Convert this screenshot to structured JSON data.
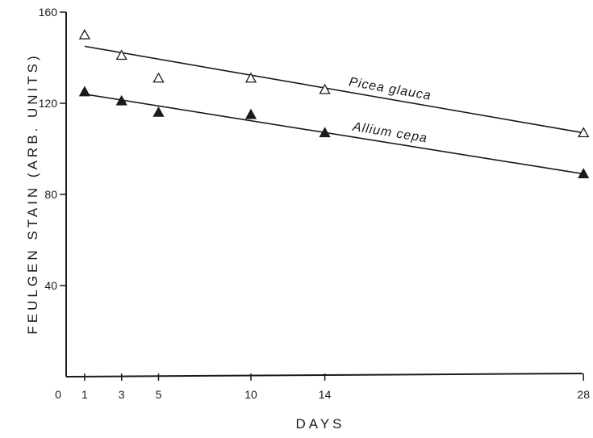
{
  "chart_data": {
    "type": "scatter",
    "xlabel": "DAYS",
    "ylabel": "FEULGEN STAIN (ARB. UNITS)",
    "xlim": [
      0,
      28
    ],
    "ylim": [
      0,
      160
    ],
    "x_ticks": [
      "0",
      "1",
      "3",
      "5",
      "10",
      "14",
      "28"
    ],
    "y_ticks": [
      "40",
      "80",
      "120",
      "160"
    ],
    "grid": false,
    "colors": {
      "ink": "#1a1a1a"
    },
    "series": [
      {
        "name": "Picea glauca",
        "marker": "open-triangle",
        "points": [
          [
            1,
            150
          ],
          [
            3,
            141
          ],
          [
            5,
            131
          ],
          [
            10,
            131
          ],
          [
            14,
            126
          ],
          [
            28,
            107
          ]
        ],
        "fit_line": [
          [
            1,
            145
          ],
          [
            28,
            107
          ]
        ]
      },
      {
        "name": "Allium cepa",
        "marker": "filled-triangle",
        "points": [
          [
            1,
            125
          ],
          [
            3,
            121
          ],
          [
            5,
            116
          ],
          [
            10,
            115
          ],
          [
            14,
            107
          ],
          [
            28,
            89
          ]
        ],
        "fit_line": [
          [
            1,
            124
          ],
          [
            28,
            89
          ]
        ]
      }
    ]
  }
}
